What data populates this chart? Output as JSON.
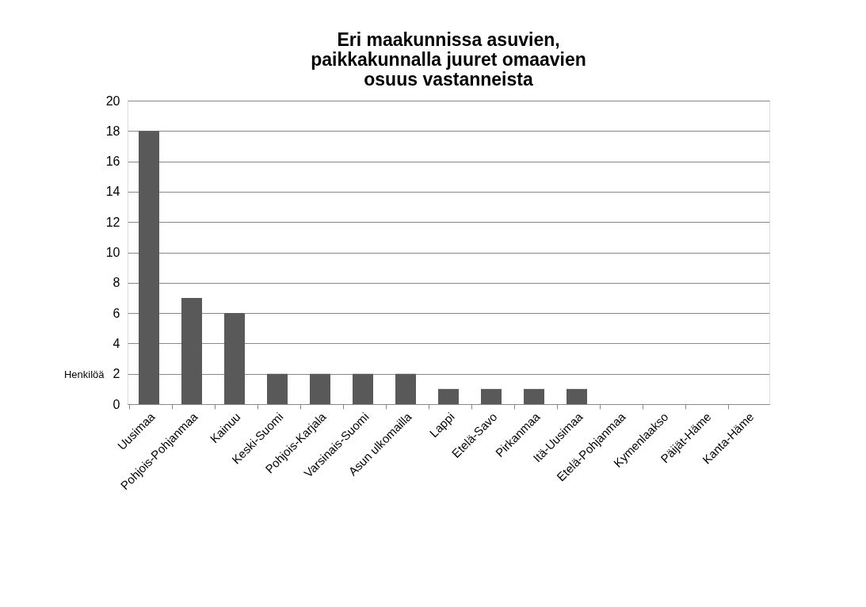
{
  "chart_data": {
    "type": "bar",
    "title": "Eri maakunnissa asuvien,\npaikkakunnalla juuret omaavien\nosuus vastanneista",
    "ylabel": "Henkilöä",
    "categories": [
      "Uusimaa",
      "Pohjois-Pohjanmaa",
      "Kainuu",
      "Keski-Suomi",
      "Pohjois-Karjala",
      "Varsinais-Suomi",
      "Asun ulkomailla",
      "Lappi",
      "Etelä-Savo",
      "Pirkanmaa",
      "Itä-Uusimaa",
      "Etelä-Pohjanmaa",
      "Kymenlaakso",
      "Päijät-Häme",
      "Kanta-Häme"
    ],
    "values": [
      18,
      7,
      6,
      2,
      2,
      2,
      2,
      1,
      1,
      1,
      1,
      0,
      0,
      0,
      0
    ],
    "color": "#595959",
    "ylim": [
      0,
      20
    ],
    "yticks": [
      0,
      2,
      4,
      6,
      8,
      10,
      12,
      14,
      16,
      18,
      20
    ],
    "grid": "y"
  }
}
